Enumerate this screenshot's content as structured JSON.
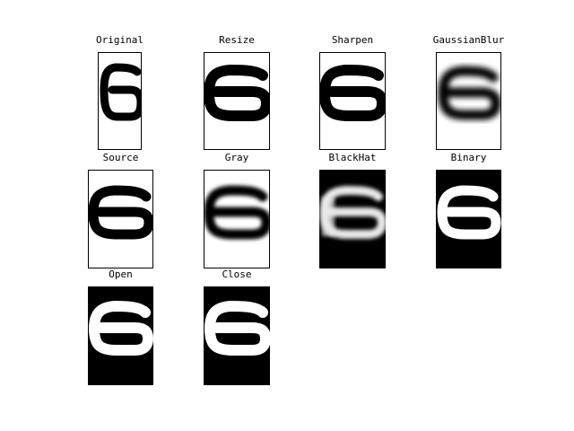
{
  "panels": {
    "original": "Original",
    "resize": "Resize",
    "sharpen": "Sharpen",
    "gaussian_blur": "GaussianBlur",
    "source": "Source",
    "gray": "Gray",
    "blackhat": "BlackHat",
    "binary": "Binary",
    "open": "Open",
    "close": "Close"
  },
  "digit_shown": "6",
  "colors": {
    "foreground": "#000000",
    "background": "#ffffff",
    "blackhat_gray": "#a8a8a8"
  }
}
